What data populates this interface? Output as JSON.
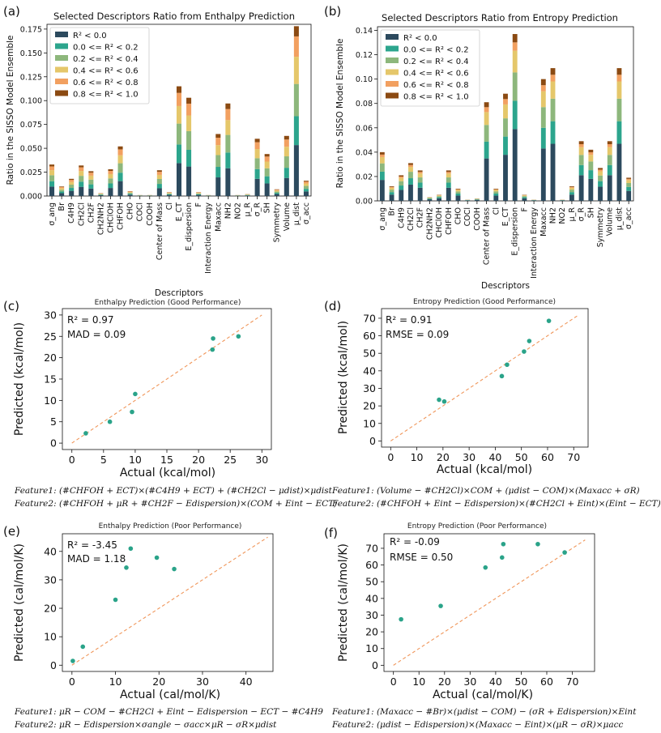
{
  "colors": {
    "r2_lt0": "#2c4a5e",
    "r2_0_02": "#2ca58d",
    "r2_02_04": "#8db77c",
    "r2_04_06": "#e5c76a",
    "r2_06_08": "#f2a060",
    "r2_08_10": "#8b4a12",
    "scatter": "#2aa389",
    "diag": "#f0965a"
  },
  "chart_data": [
    {
      "panel": "(a)",
      "type": "bar",
      "stacked": true,
      "title": "Selected Descriptors Ratio from Enthalpy Prediction",
      "xlabel": "Descriptors",
      "ylabel": "Ratio in the SISSO Model Ensemble",
      "ylim": [
        0,
        0.18
      ],
      "yticks": [
        "0.000",
        "0.025",
        "0.050",
        "0.075",
        "0.100",
        "0.125",
        "0.150",
        "0.175"
      ],
      "legend": [
        "R² < 0.0",
        "0.0 <= R² < 0.2",
        "0.2 <= R² < 0.4",
        "0.4 <= R² < 0.6",
        "0.6 <= R² < 0.8",
        "0.8 <= R² < 1.0"
      ],
      "categories": [
        "σ_ang",
        "Br",
        "C4H9",
        "CH2Cl",
        "CH2F",
        "CH2NH2",
        "CHClOH",
        "CHFOH",
        "CHO",
        "COCl",
        "COOH",
        "Center of Mass",
        "Cl",
        "E_CT",
        "E_dispersion",
        "F",
        "Interaction Energy",
        "Maxacc",
        "NH2",
        "NO2",
        "μ_R",
        "σ_R",
        "SH",
        "Symmetry",
        "Volume",
        "μ_dist",
        "σ_acc"
      ],
      "totals": [
        0.033,
        0.01,
        0.018,
        0.032,
        0.026,
        0.003,
        0.028,
        0.052,
        0.005,
        0.001,
        0.001,
        0.027,
        0.004,
        0.115,
        0.103,
        0.004,
        0.001,
        0.065,
        0.097,
        0.001,
        0.002,
        0.06,
        0.044,
        0.007,
        0.063,
        0.178,
        0.016
      ],
      "fractions": [
        0.3,
        0.17,
        0.19,
        0.16,
        0.12,
        0.06
      ]
    },
    {
      "panel": "(b)",
      "type": "bar",
      "stacked": true,
      "title": "Selected Descriptors Ratio from Entropy Prediction",
      "xlabel": "Descriptors",
      "ylabel": "Ratio in the SISSO Model Ensemble",
      "ylim": [
        0,
        0.143
      ],
      "yticks": [
        "0.00",
        "0.02",
        "0.04",
        "0.06",
        "0.08",
        "0.10",
        "0.12",
        "0.14"
      ],
      "legend": [
        "R² < 0.0",
        "0.0 <= R² < 0.2",
        "0.2 <= R² < 0.4",
        "0.4 <= R² < 0.6",
        "0.6 <= R² < 0.8",
        "0.8 <= R² < 1.0"
      ],
      "categories": [
        "σ_ang",
        "Br",
        "C4H9",
        "CH2Cl",
        "CH2F",
        "CH2NH2",
        "CHClOH",
        "CHFOH",
        "CHO",
        "COCl",
        "COOH",
        "Center of Mass",
        "Cl",
        "E_CT",
        "E_dispersion",
        "F",
        "Interaction Energy",
        "Maxacc",
        "NH2",
        "NO2",
        "μ_R",
        "σ_R",
        "SH",
        "Symmetry",
        "Volume",
        "μ_dist",
        "σ_acc"
      ],
      "totals": [
        0.04,
        0.012,
        0.021,
        0.031,
        0.025,
        0.003,
        0.005,
        0.025,
        0.01,
        0.001,
        0.002,
        0.081,
        0.01,
        0.088,
        0.137,
        0.005,
        0.001,
        0.1,
        0.109,
        0.001,
        0.012,
        0.049,
        0.042,
        0.027,
        0.049,
        0.109,
        0.019
      ],
      "fractions": [
        0.43,
        0.17,
        0.17,
        0.13,
        0.05,
        0.05
      ]
    },
    {
      "panel": "(c)",
      "type": "scatter",
      "title": "Enthalpy Prediction (Good Performance)",
      "xlabel": "Actual (kcal/mol)",
      "ylabel": "Predicted (kcal/mol)",
      "xlim": [
        -1.5,
        31.5
      ],
      "ylim": [
        -1.5,
        31.5
      ],
      "xticks": [
        0,
        5,
        10,
        15,
        20,
        25,
        30
      ],
      "yticks": [
        0,
        5,
        10,
        15,
        20,
        25,
        30
      ],
      "diag": [
        0,
        30
      ],
      "stats": [
        "R² = 0.97",
        "MAD = 0.09"
      ],
      "x": [
        2.2,
        6.0,
        9.5,
        10.0,
        22.2,
        22.3,
        26.3
      ],
      "y": [
        2.3,
        5.0,
        7.3,
        11.5,
        21.9,
        24.5,
        25.0
      ]
    },
    {
      "panel": "(d)",
      "type": "scatter",
      "title": "Entropy Prediction (Good Performance)",
      "xlabel": "Actual (kcal/mol)",
      "ylabel": "Predicted (kcal/mol)",
      "xlim": [
        -3.5,
        75.5
      ],
      "ylim": [
        -3.5,
        75.5
      ],
      "xticks": [
        0,
        10,
        20,
        30,
        40,
        50,
        60,
        70
      ],
      "yticks": [
        0,
        10,
        20,
        30,
        40,
        50,
        60,
        70
      ],
      "diag": [
        0,
        72
      ],
      "stats": [
        "R² = 0.91",
        "RMSE = 0.09"
      ],
      "x": [
        18.5,
        20.5,
        42.5,
        44.5,
        51.0,
        53.0,
        60.5
      ],
      "y": [
        23.5,
        22.5,
        37.0,
        43.5,
        51.0,
        57.0,
        68.5
      ]
    },
    {
      "panel": "(e)",
      "type": "scatter",
      "title": "Enthalpy Prediction (Poor Performance)",
      "xlabel": "Actual (cal/mol/K)",
      "ylabel": "Predicted (cal/mol/K)",
      "xlim": [
        -2.2,
        46.2
      ],
      "ylim": [
        -2.2,
        46.2
      ],
      "xticks": [
        0,
        10,
        20,
        30,
        40
      ],
      "yticks": [
        0,
        10,
        20,
        30,
        40
      ],
      "diag": [
        0,
        45
      ],
      "stats": [
        "R² = -3.45",
        "MAD = 1.18"
      ],
      "x": [
        0.2,
        2.5,
        10.0,
        12.5,
        13.5,
        19.5,
        23.5
      ],
      "y": [
        1.5,
        6.5,
        23.0,
        34.3,
        41.0,
        37.8,
        33.8
      ]
    },
    {
      "panel": "(f)",
      "type": "scatter",
      "title": "Entropy Prediction (Poor Performance)",
      "xlabel": "Actual (cal/mol/K)",
      "ylabel": "Predicted (cal/mol/K)",
      "xlim": [
        -3.7,
        78.7
      ],
      "ylim": [
        -3.7,
        78.7
      ],
      "xticks": [
        0,
        10,
        20,
        30,
        40,
        50,
        60,
        70
      ],
      "yticks": [
        0,
        10,
        20,
        30,
        40,
        50,
        60,
        70
      ],
      "diag": [
        0,
        75
      ],
      "stats": [
        "R² = -0.09",
        "RMSE = 0.50"
      ],
      "x": [
        3.0,
        18.5,
        36.0,
        42.5,
        43.0,
        56.5,
        67.0
      ],
      "y": [
        27.5,
        35.5,
        58.5,
        64.5,
        72.5,
        72.5,
        67.5
      ]
    }
  ],
  "formulas": {
    "c1": "Feature1: (#CHFOH + ECT)×(#C4H9 + ECT) + (#CH2Cl − μdist)×μdist",
    "c2": "Feature2: (#CHFOH + μR + #CH2F − Edispersion)×(COM + Eint − ECT)",
    "d1": "Feature1: (Volume − #CH2Cl)×COM + (μdist − COM)×(Maxacc + σR)",
    "d2": "Feature2: (#CHFOH + Eint − Edispersion)×(#CH2Cl + Eint)×(Eint − ECT)",
    "e1": "Feature1: μR − COM − #CH2Cl + Eint − Edispersion − ECT − #C4H9",
    "e2": "Feature2: μR − Edispersion×σangle − σacc×μR − σR×μdist",
    "f1": "Feature1: (Maxacc − #Br)×(μdist − COM) − (σR + Edispersion)×Eint",
    "f2": "Feature2: (μdist − Edispersion)×(Maxacc − Eint)×(μR − σR)×μacc"
  }
}
